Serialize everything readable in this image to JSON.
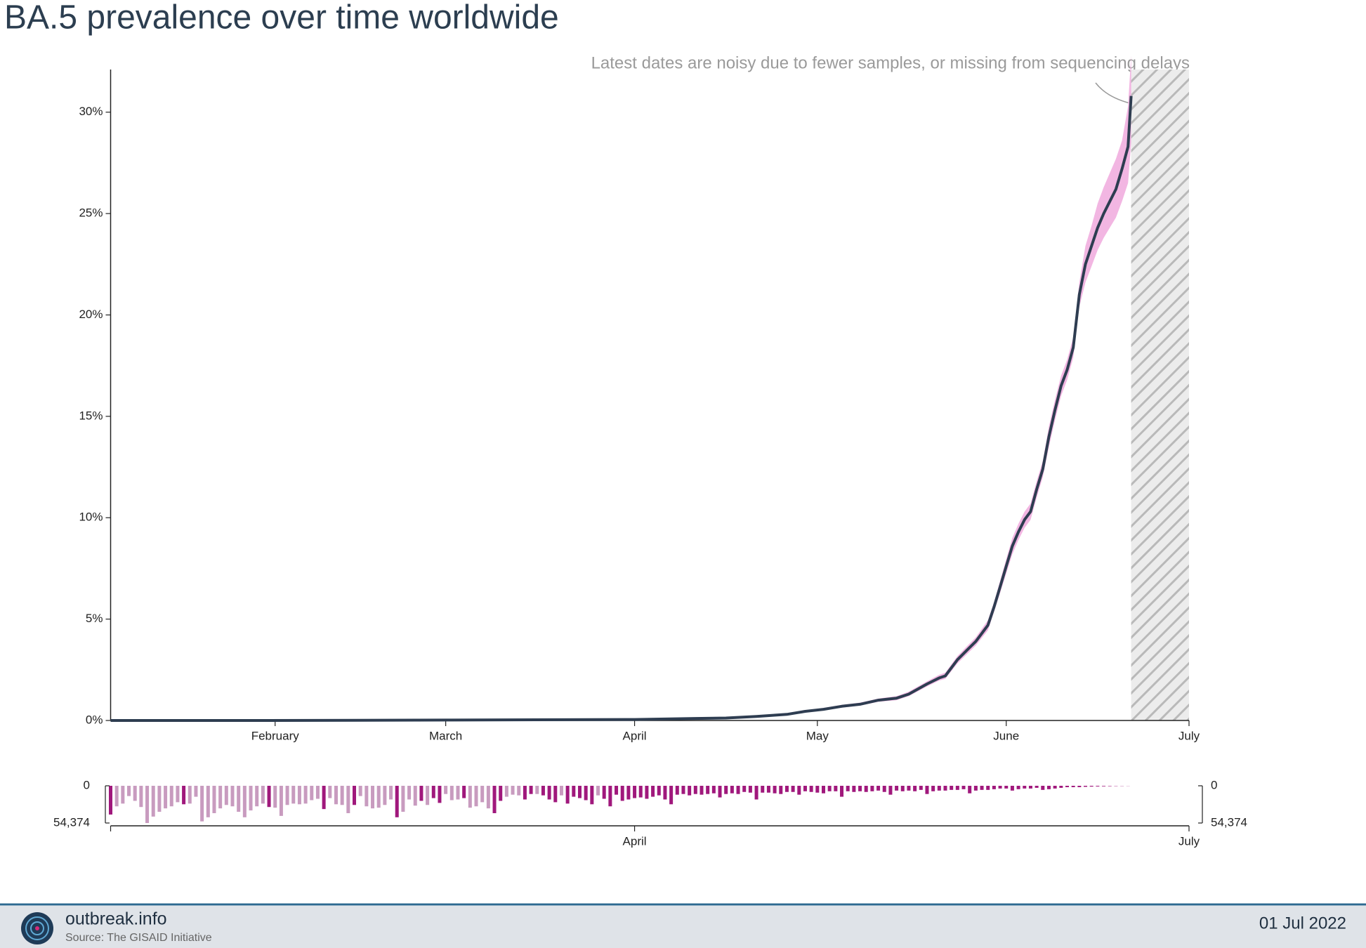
{
  "chart_data": [
    {
      "type": "line",
      "title": "BA.5 prevalence over time worldwide",
      "annotation": "Latest dates are noisy due to fewer samples, or missing from sequencing delays",
      "x": [
        4,
        30,
        60,
        90,
        100,
        105,
        110,
        115,
        118,
        121,
        124,
        127,
        130,
        133,
        135,
        138,
        140,
        141,
        143,
        145,
        146,
        148,
        149,
        150,
        151,
        152,
        153,
        154,
        155,
        156,
        157,
        158,
        159,
        160,
        161,
        162,
        163,
        164,
        165,
        166,
        167,
        168,
        169,
        170,
        171,
        171.5
      ],
      "values": [
        0,
        0,
        0.02,
        0.05,
        0.1,
        0.12,
        0.2,
        0.3,
        0.45,
        0.55,
        0.7,
        0.8,
        1.0,
        1.1,
        1.3,
        1.8,
        2.1,
        2.2,
        3.0,
        3.6,
        3.9,
        4.7,
        5.6,
        6.6,
        7.6,
        8.6,
        9.3,
        9.9,
        10.3,
        11.4,
        12.4,
        14.0,
        15.3,
        16.5,
        17.3,
        18.4,
        21.0,
        22.5,
        23.4,
        24.3,
        25.0,
        25.6,
        26.2,
        27.2,
        28.3,
        30.8
      ],
      "lower": [
        0,
        0,
        0.01,
        0.03,
        0.07,
        0.09,
        0.16,
        0.25,
        0.4,
        0.5,
        0.63,
        0.73,
        0.92,
        1.0,
        1.2,
        1.68,
        1.97,
        2.05,
        2.82,
        3.4,
        3.7,
        4.45,
        5.35,
        6.3,
        7.25,
        8.2,
        8.9,
        9.5,
        9.9,
        11.0,
        12.0,
        13.5,
        14.8,
        16.0,
        16.8,
        17.9,
        20.4,
        21.6,
        22.4,
        23.2,
        23.8,
        24.3,
        24.8,
        25.6,
        26.5,
        28.5
      ],
      "upper": [
        0,
        0,
        0.03,
        0.07,
        0.13,
        0.16,
        0.24,
        0.35,
        0.5,
        0.62,
        0.77,
        0.88,
        1.08,
        1.2,
        1.42,
        1.93,
        2.25,
        2.36,
        3.18,
        3.8,
        4.1,
        4.95,
        5.85,
        6.9,
        7.95,
        9.0,
        9.7,
        10.3,
        10.7,
        11.8,
        12.8,
        14.5,
        15.8,
        17.0,
        17.8,
        18.9,
        21.6,
        23.4,
        24.4,
        25.5,
        26.3,
        27.0,
        27.7,
        28.6,
        30.3,
        32.8
      ],
      "color": "#2e3d51",
      "band_color": "#f2b6e2",
      "hatch_region": [
        171.5,
        181
      ],
      "xlim": [
        4,
        181
      ],
      "xticks": [
        {
          "value": 31,
          "label": "February"
        },
        {
          "value": 59,
          "label": "March"
        },
        {
          "value": 90,
          "label": "April"
        },
        {
          "value": 120,
          "label": "May"
        },
        {
          "value": 151,
          "label": "June"
        },
        {
          "value": 181,
          "label": "July"
        }
      ],
      "ylim": [
        0,
        32
      ],
      "yticks": [
        {
          "value": 0,
          "label": "0%"
        },
        {
          "value": 5,
          "label": "5%"
        },
        {
          "value": 10,
          "label": "10%"
        },
        {
          "value": 15,
          "label": "15%"
        },
        {
          "value": 20,
          "label": "20%"
        },
        {
          "value": 25,
          "label": "25%"
        },
        {
          "value": 30,
          "label": "30%"
        }
      ]
    },
    {
      "type": "bar",
      "x": [
        4,
        5,
        6,
        7,
        8,
        9,
        10,
        11,
        12,
        13,
        14,
        15,
        16,
        17,
        18,
        19,
        20,
        21,
        22,
        23,
        24,
        25,
        26,
        27,
        28,
        29,
        30,
        31,
        32,
        33,
        34,
        35,
        36,
        37,
        38,
        39,
        40,
        41,
        42,
        43,
        44,
        45,
        46,
        47,
        48,
        49,
        50,
        51,
        52,
        53,
        54,
        55,
        56,
        57,
        58,
        59,
        60,
        61,
        62,
        63,
        64,
        65,
        66,
        67,
        68,
        69,
        70,
        71,
        72,
        73,
        74,
        75,
        76,
        77,
        78,
        79,
        80,
        81,
        82,
        83,
        84,
        85,
        86,
        87,
        88,
        89,
        90,
        91,
        92,
        93,
        94,
        95,
        96,
        97,
        98,
        99,
        100,
        101,
        102,
        103,
        104,
        105,
        106,
        107,
        108,
        109,
        110,
        111,
        112,
        113,
        114,
        115,
        116,
        117,
        118,
        119,
        120,
        121,
        122,
        123,
        124,
        125,
        126,
        127,
        128,
        129,
        130,
        131,
        132,
        133,
        134,
        135,
        136,
        137,
        138,
        139,
        140,
        141,
        142,
        143,
        144,
        145,
        146,
        147,
        148,
        149,
        150,
        151,
        152,
        153,
        154,
        155,
        156,
        157,
        158,
        159,
        160,
        161,
        162,
        163,
        164,
        165,
        166,
        167,
        168,
        169,
        170,
        171
      ],
      "values": [
        42000,
        30000,
        26000,
        15000,
        22000,
        31000,
        54374,
        45000,
        38000,
        33000,
        30000,
        24000,
        27000,
        26000,
        16000,
        52000,
        46000,
        40000,
        33000,
        28000,
        30000,
        38000,
        46000,
        36000,
        30000,
        26000,
        31000,
        32000,
        44000,
        28000,
        26000,
        27000,
        26000,
        21000,
        19000,
        34000,
        18000,
        27000,
        28000,
        40000,
        28000,
        15000,
        30000,
        33000,
        32000,
        28000,
        20000,
        46000,
        38000,
        20000,
        29000,
        22000,
        28000,
        18000,
        25000,
        12000,
        21000,
        20000,
        18000,
        32000,
        30000,
        24000,
        33000,
        40000,
        22000,
        16000,
        13000,
        14000,
        20000,
        12000,
        12000,
        14000,
        20000,
        24000,
        14000,
        26000,
        16000,
        18000,
        21000,
        27000,
        14000,
        19000,
        30000,
        13000,
        22000,
        20000,
        18000,
        17000,
        19000,
        16000,
        14000,
        20000,
        27000,
        13000,
        12000,
        14000,
        12000,
        13000,
        12000,
        11000,
        17000,
        12000,
        11000,
        12000,
        9000,
        10000,
        20000,
        10000,
        10000,
        11000,
        12000,
        9000,
        9000,
        13000,
        8000,
        9000,
        10000,
        11000,
        8000,
        8000,
        16000,
        8000,
        9000,
        8000,
        9000,
        8000,
        7000,
        9000,
        13000,
        7000,
        8000,
        7000,
        8000,
        6000,
        12000,
        8000,
        7000,
        7000,
        6000,
        6000,
        5000,
        11000,
        7000,
        6000,
        6000,
        5000,
        4000,
        4000,
        7000,
        5000,
        4000,
        4000,
        3000,
        6000,
        5000,
        4000,
        3000,
        2000,
        2000,
        2000,
        1500,
        1200,
        1000,
        800,
        600,
        400,
        300,
        200
      ],
      "colors": [
        "#a0187c",
        "#c89bbf",
        "#c89bbf",
        "#c89bbf",
        "#c89bbf",
        "#c89bbf",
        "#c89bbf",
        "#c89bbf",
        "#c89bbf",
        "#c89bbf",
        "#c89bbf",
        "#c89bbf",
        "#a0187c",
        "#c89bbf",
        "#c89bbf",
        "#c89bbf",
        "#c89bbf",
        "#c89bbf",
        "#c89bbf",
        "#c89bbf",
        "#c89bbf",
        "#c89bbf",
        "#c89bbf",
        "#c89bbf",
        "#c89bbf",
        "#c89bbf",
        "#a0187c",
        "#c89bbf",
        "#c89bbf",
        "#c89bbf",
        "#c89bbf",
        "#c89bbf",
        "#c89bbf",
        "#c89bbf",
        "#c89bbf",
        "#a0187c",
        "#c89bbf",
        "#c89bbf",
        "#c89bbf",
        "#c89bbf",
        "#a0187c",
        "#c89bbf",
        "#c89bbf",
        "#c89bbf",
        "#c89bbf",
        "#c89bbf",
        "#c89bbf",
        "#a0187c",
        "#c89bbf",
        "#c89bbf",
        "#c89bbf",
        "#a0187c",
        "#c89bbf",
        "#a0187c",
        "#a0187c",
        "#c89bbf",
        "#c89bbf",
        "#c89bbf",
        "#a0187c",
        "#c89bbf",
        "#c89bbf",
        "#c89bbf",
        "#c89bbf",
        "#a0187c",
        "#a0187c",
        "#c89bbf",
        "#c89bbf",
        "#c89bbf",
        "#a0187c",
        "#a0187c",
        "#c89bbf",
        "#a0187c",
        "#a0187c",
        "#a0187c",
        "#c89bbf",
        "#a0187c",
        "#a0187c",
        "#a0187c",
        "#a0187c",
        "#a0187c",
        "#c89bbf",
        "#a0187c",
        "#a0187c",
        "#a0187c",
        "#a0187c",
        "#a0187c",
        "#a0187c",
        "#a0187c",
        "#a0187c",
        "#a0187c",
        "#a0187c",
        "#a0187c",
        "#a0187c",
        "#a0187c",
        "#a0187c",
        "#a0187c",
        "#a0187c",
        "#a0187c",
        "#a0187c",
        "#a0187c",
        "#a0187c",
        "#a0187c",
        "#a0187c",
        "#a0187c",
        "#a0187c",
        "#a0187c",
        "#a0187c",
        "#a0187c",
        "#a0187c",
        "#a0187c",
        "#a0187c",
        "#a0187c",
        "#a0187c",
        "#a0187c",
        "#a0187c",
        "#a0187c",
        "#a0187c",
        "#a0187c",
        "#a0187c",
        "#a0187c",
        "#a0187c",
        "#a0187c",
        "#a0187c",
        "#a0187c",
        "#a0187c",
        "#a0187c",
        "#a0187c",
        "#a0187c",
        "#a0187c",
        "#a0187c",
        "#a0187c",
        "#a0187c",
        "#a0187c",
        "#a0187c",
        "#a0187c",
        "#a0187c",
        "#a0187c",
        "#a0187c",
        "#a0187c",
        "#a0187c",
        "#a0187c",
        "#a0187c",
        "#a0187c",
        "#a0187c",
        "#a0187c",
        "#a0187c",
        "#a0187c",
        "#a0187c",
        "#a0187c",
        "#a0187c",
        "#a0187c",
        "#a0187c",
        "#a0187c",
        "#a0187c",
        "#a0187c",
        "#a0187c",
        "#a0187c",
        "#a0187c",
        "#a0187c",
        "#a0187c",
        "#a0187c",
        "#a0187c",
        "#a0187c",
        "#a0187c",
        "#a0187c",
        "#a0187c",
        "#a0187c",
        "#a0187c"
      ],
      "xlim": [
        4,
        181
      ],
      "xticks": [
        {
          "value": 90,
          "label": "April"
        },
        {
          "value": 181,
          "label": "July"
        }
      ],
      "ylim": [
        0,
        54374
      ],
      "yticks": [
        0,
        {
          "value": 54374,
          "label": "54,374"
        }
      ],
      "inverted": true
    }
  ],
  "footer": {
    "site": "outbreak.info",
    "source": "Source: The GISAID Initiative",
    "date": "01 Jul 2022"
  }
}
